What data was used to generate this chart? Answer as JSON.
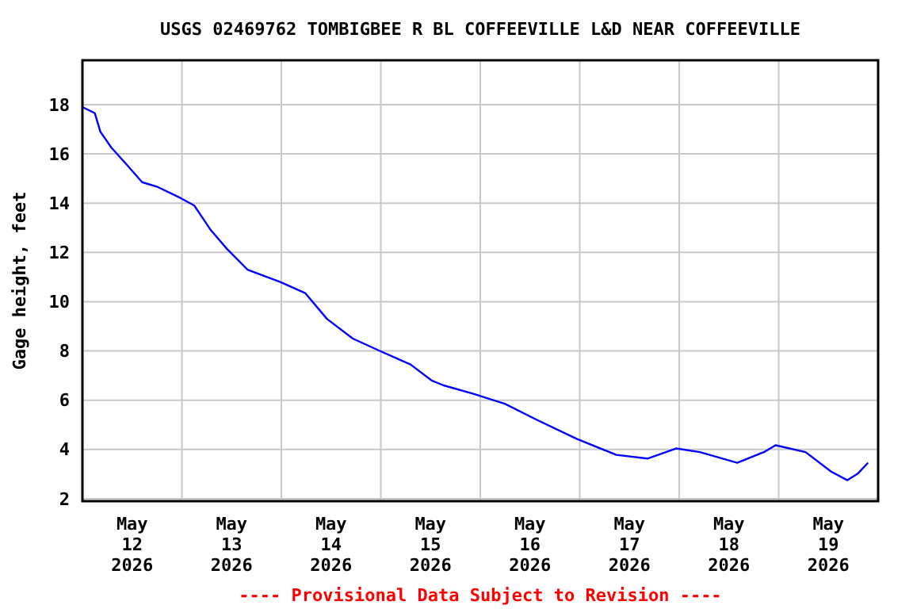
{
  "chart_data": {
    "type": "line",
    "title": "USGS 02469762 TOMBIGBEE R BL COFFEEVILLE L&D NEAR COFFEEVILLE",
    "ylabel": "Gage height, feet",
    "annotations": [
      "---- Provisional Data Subject to Revision ----"
    ],
    "xlim": [
      "2026-05-12T00:00",
      "2026-05-20T00:00"
    ],
    "ylim": [
      1.9,
      19.8
    ],
    "yticks": [
      2,
      4,
      6,
      8,
      10,
      12,
      14,
      16,
      18
    ],
    "xticks": [
      {
        "value": "2026-05-12T00:00",
        "label": null
      },
      {
        "value": "2026-05-12T12:00",
        "label": "May\n12\n2026"
      },
      {
        "value": "2026-05-13T00:00",
        "label": null
      },
      {
        "value": "2026-05-13T12:00",
        "label": "May\n13\n2026"
      },
      {
        "value": "2026-05-14T00:00",
        "label": null
      },
      {
        "value": "2026-05-14T12:00",
        "label": "May\n14\n2026"
      },
      {
        "value": "2026-05-15T00:00",
        "label": null
      },
      {
        "value": "2026-05-15T12:00",
        "label": "May\n15\n2026"
      },
      {
        "value": "2026-05-16T00:00",
        "label": null
      },
      {
        "value": "2026-05-16T12:00",
        "label": "May\n16\n2026"
      },
      {
        "value": "2026-05-17T00:00",
        "label": null
      },
      {
        "value": "2026-05-17T12:00",
        "label": "May\n17\n2026"
      },
      {
        "value": "2026-05-18T00:00",
        "label": null
      },
      {
        "value": "2026-05-18T12:00",
        "label": "May\n18\n2026"
      },
      {
        "value": "2026-05-19T00:00",
        "label": null
      },
      {
        "value": "2026-05-19T12:00",
        "label": "May\n19\n2026"
      },
      {
        "value": "2026-05-20T00:00",
        "label": null
      }
    ],
    "grid": true,
    "marker": "none",
    "line_style": "solid",
    "series": [
      {
        "color": "#0000ff",
        "x": [
          "2026-05-12T00:00",
          "2026-05-12T03:00",
          "2026-05-12T04:20",
          "2026-05-12T07:00",
          "2026-05-12T10:30",
          "2026-05-12T14:24",
          "2026-05-12T18:15",
          "2026-05-12T23:45",
          "2026-05-13T03:00",
          "2026-05-13T07:00",
          "2026-05-13T10:50",
          "2026-05-13T15:50",
          "2026-05-13T23:45",
          "2026-05-14T05:45",
          "2026-05-14T11:00",
          "2026-05-14T17:15",
          "2026-05-14T23:45",
          "2026-05-15T07:10",
          "2026-05-15T12:15",
          "2026-05-15T15:10",
          "2026-05-15T22:30",
          "2026-05-16T06:00",
          "2026-05-16T13:40",
          "2026-05-16T23:15",
          "2026-05-17T08:50",
          "2026-05-17T16:20",
          "2026-05-17T23:15",
          "2026-05-18T05:00",
          "2026-05-18T14:00",
          "2026-05-18T20:25",
          "2026-05-18T23:15",
          "2026-05-19T06:30",
          "2026-05-19T12:40",
          "2026-05-19T16:35",
          "2026-05-19T19:10",
          "2026-05-19T21:35"
        ],
        "values": [
          17.9,
          17.65,
          16.9,
          16.25,
          15.6,
          14.85,
          14.65,
          14.2,
          13.9,
          12.9,
          12.15,
          11.3,
          10.8,
          10.35,
          9.3,
          8.5,
          8.0,
          7.45,
          6.8,
          6.6,
          6.25,
          5.85,
          5.2,
          4.43,
          3.78,
          3.63,
          4.04,
          3.89,
          3.46,
          3.89,
          4.17,
          3.89,
          3.1,
          2.75,
          3.03,
          3.46
        ]
      }
    ]
  }
}
